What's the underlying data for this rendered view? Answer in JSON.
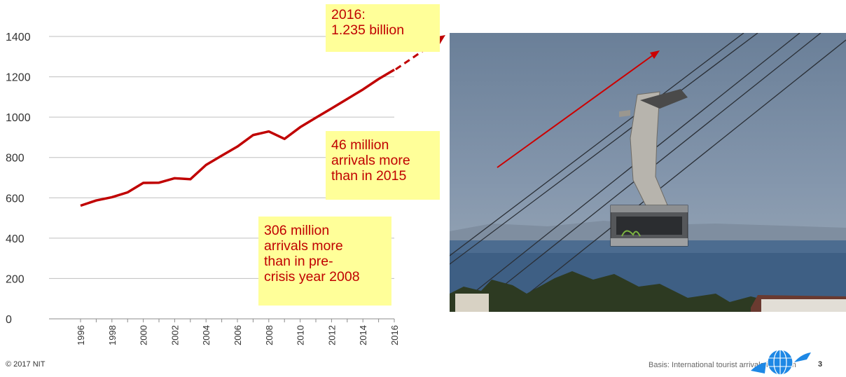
{
  "chart_data": {
    "type": "line",
    "x": [
      "1996",
      "1997",
      "1998",
      "1999",
      "2000",
      "2001",
      "2002",
      "2003",
      "2004",
      "2005",
      "2006",
      "2007",
      "2008",
      "2009",
      "2010",
      "2011",
      "2012",
      "2013",
      "2014",
      "2015",
      "2016"
    ],
    "series": [
      {
        "values": [
          561,
          587,
          603,
          627,
          674,
          675,
          697,
          692,
          763,
          809,
          854,
          911,
          929,
          892,
          950,
          997,
          1043,
          1090,
          1137,
          1189,
          1235
        ]
      }
    ],
    "y_ticks": [
      "0",
      "200",
      "400",
      "600",
      "800",
      "1000",
      "1200",
      "1400"
    ],
    "x_ticks": [
      "1996",
      "1998",
      "2000",
      "2002",
      "2004",
      "2006",
      "2008",
      "2010",
      "2012",
      "2014",
      "2016"
    ],
    "ylim": [
      0,
      1400
    ],
    "title": "",
    "xlabel": "",
    "ylabel": "",
    "grid": true,
    "colors": {
      "line": "#c00000",
      "grid": "#bfbfbf",
      "callout_bg": "#ffff99",
      "callout_text": "#c00000"
    }
  },
  "callouts": {
    "top_line1": "2016:",
    "top_line2": "1.235 billion",
    "mid_line1": "46 million",
    "mid_line2": "arrivals more",
    "mid_line3": "than in 2015",
    "low_line1": "306 million",
    "low_line2": "arrivals more",
    "low_line3": "than in pre-",
    "low_line4": "crisis year 2008"
  },
  "photo": {
    "subject": "cable car gondola over the sea",
    "arrow_color": "#cc0000"
  },
  "footer": {
    "copyright": "© 2017 NIT",
    "basis": "Basis: International tourist arrivals in million",
    "page_number": "3",
    "logo": "globe-logo-icon"
  }
}
